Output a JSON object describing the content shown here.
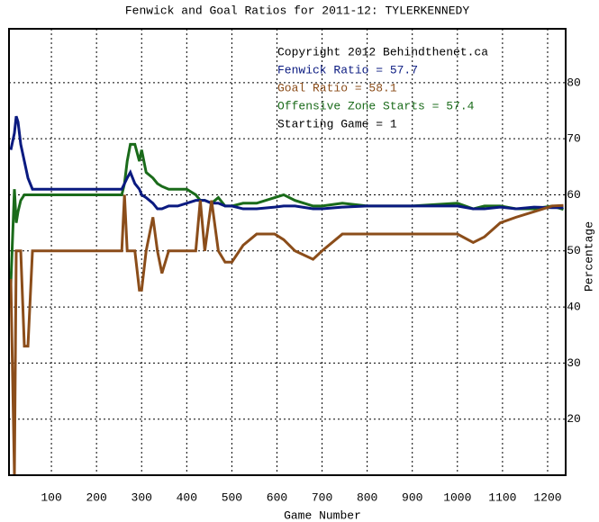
{
  "chart_data": {
    "type": "line",
    "title": "Fenwick and Goal Ratios for 2011-12: TYLERKENNEDY",
    "x_label": "Game Number",
    "y_label": "Percentage",
    "annotations": [
      "Copyright 2012 Behindthenet.ca",
      "Starting Game = 1"
    ],
    "x": [
      10,
      18,
      22,
      26,
      32,
      40,
      48,
      58,
      62,
      100,
      200,
      256,
      262,
      268,
      275,
      285,
      295,
      300,
      310,
      325,
      335,
      345,
      360,
      380,
      400,
      420,
      430,
      440,
      455,
      470,
      485,
      500,
      525,
      555,
      595,
      615,
      640,
      680,
      700,
      745,
      800,
      900,
      1000,
      1035,
      1060,
      1095,
      1130,
      1170,
      1210,
      1235
    ],
    "series": [
      {
        "name": "Fenwick Ratio = 57.7",
        "color": "#0a1a80",
        "values": [
          68,
          71,
          74,
          73,
          69,
          66,
          63,
          61,
          61,
          61,
          61,
          61,
          62,
          63,
          64,
          62,
          61,
          60,
          59.5,
          58.5,
          57.5,
          57.5,
          58,
          58,
          58.5,
          59,
          59,
          59,
          58.5,
          58.5,
          58,
          58,
          57.5,
          57.5,
          57.8,
          58,
          58,
          57.5,
          57.5,
          57.8,
          58,
          58,
          58,
          57.5,
          57.5,
          57.8,
          57.5,
          57.8,
          57.7,
          57.7
        ]
      },
      {
        "name": "Goal Ratio = 58.1",
        "color": "#8b4d1a",
        "values": [
          45,
          10,
          50,
          50,
          50,
          33,
          33,
          50,
          50,
          50,
          50,
          50,
          60,
          50,
          50,
          50,
          43,
          43,
          50,
          56,
          50,
          46,
          50,
          50,
          50,
          50,
          59,
          50,
          59,
          50,
          48,
          48,
          51,
          53,
          53,
          52,
          50,
          48.5,
          50,
          53,
          53,
          53,
          53,
          51.5,
          52.5,
          55,
          56,
          57,
          58,
          58.1
        ]
      },
      {
        "name": "Offensive Zone Starts = 57.4",
        "color": "#1a6b1a",
        "values": [
          44,
          61,
          55,
          57,
          59,
          60,
          60,
          60,
          60,
          60,
          60,
          60,
          62,
          66,
          69,
          69,
          66,
          68,
          64,
          63,
          62,
          61.5,
          61,
          61,
          61,
          60,
          59,
          59,
          58.5,
          59.5,
          58,
          58,
          58.5,
          58.5,
          59.5,
          60,
          59,
          58,
          58,
          58.5,
          58,
          58,
          58.5,
          57.5,
          58,
          58,
          57.5,
          57.5,
          58,
          57.4
        ]
      }
    ],
    "xlim": [
      6,
      1240
    ],
    "ylim": [
      10,
      89.6
    ],
    "xticks": [
      100,
      200,
      300,
      400,
      500,
      600,
      700,
      800,
      900,
      1000,
      1100,
      1200
    ],
    "yticks": [
      20,
      30,
      40,
      50,
      60,
      70,
      80
    ],
    "grid": true
  }
}
